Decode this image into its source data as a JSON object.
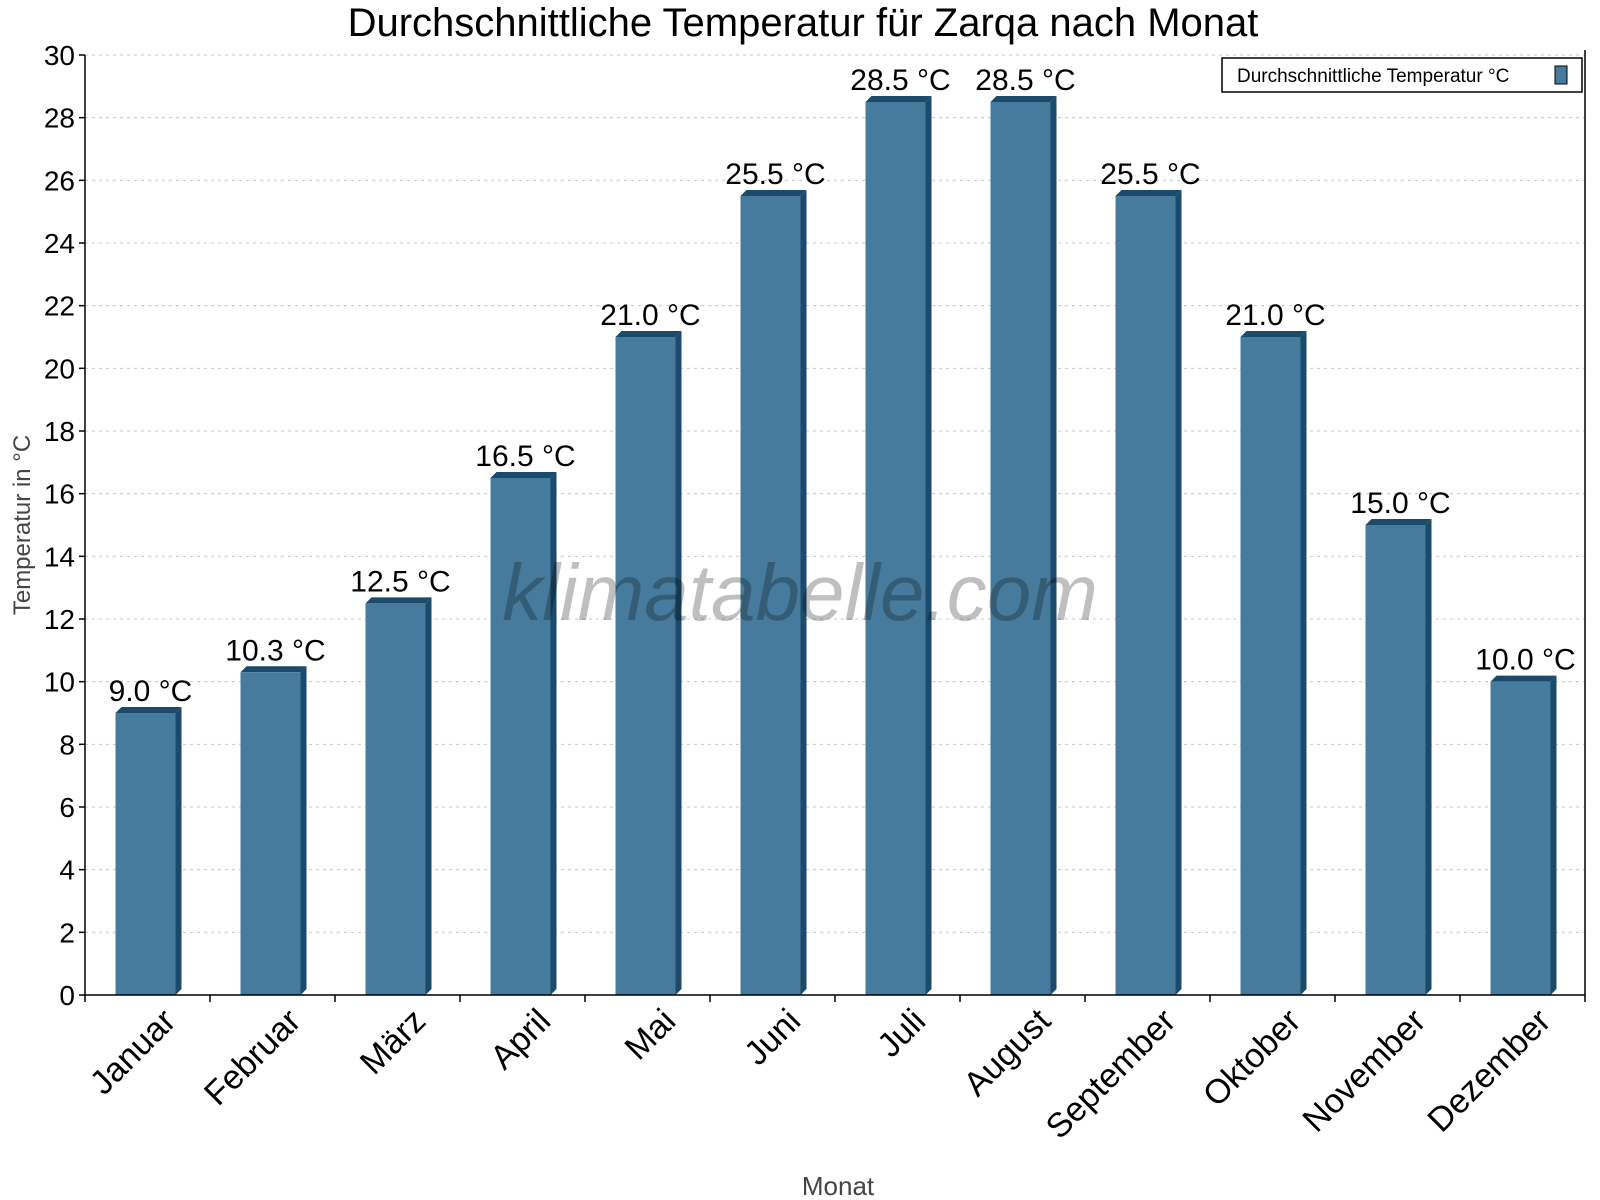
{
  "chart_data": {
    "type": "bar",
    "title": "Durchschnittliche Temperatur für Zarqa nach Monat",
    "xlabel": "Monat",
    "ylabel": "Temperatur in °C",
    "ylim": [
      0,
      30
    ],
    "yticks": [
      0,
      2,
      4,
      6,
      8,
      10,
      12,
      14,
      16,
      18,
      20,
      22,
      24,
      26,
      28,
      30
    ],
    "grid": true,
    "legend_position": "top-right",
    "categories": [
      "Januar",
      "Februar",
      "März",
      "April",
      "Mai",
      "Juni",
      "Juli",
      "August",
      "September",
      "Oktober",
      "November",
      "Dezember"
    ],
    "series": [
      {
        "name": "Durchschnittliche Temperatur °C",
        "values": [
          9.0,
          10.3,
          12.5,
          16.5,
          21.0,
          25.5,
          28.5,
          28.5,
          25.5,
          21.0,
          15.0,
          10.0
        ],
        "labels": [
          "9.0 °C",
          "10.3 °C",
          "12.5 °C",
          "16.5 °C",
          "21.0 °C",
          "25.5 °C",
          "28.5 °C",
          "28.5 °C",
          "25.5 °C",
          "21.0 °C",
          "15.0 °C",
          "10.0 °C"
        ],
        "color": "#467b9d",
        "shade_color": "#1b4a6b"
      }
    ],
    "watermark": "klimatabelle.com"
  }
}
